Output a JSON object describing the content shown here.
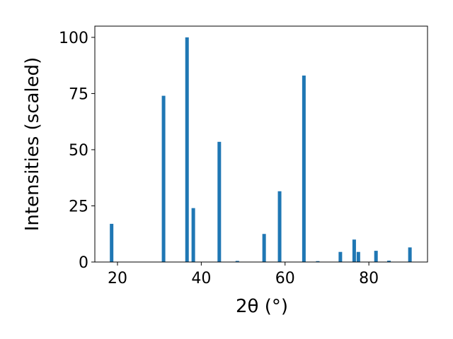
{
  "chart_data": {
    "type": "bar",
    "xlabel": "2θ (°)",
    "ylabel": "Intensities (scaled)",
    "x": [
      18.6,
      31.0,
      36.6,
      38.1,
      44.3,
      48.6,
      55.0,
      58.7,
      64.5,
      67.8,
      73.2,
      76.5,
      77.5,
      81.7,
      84.8,
      89.8
    ],
    "values": [
      17,
      74,
      100,
      24,
      53.5,
      0.5,
      12.5,
      31.5,
      83,
      0.4,
      4.5,
      10,
      4.5,
      5,
      0.6,
      6.5
    ],
    "color": "#1f77b4",
    "xlim": [
      14.6,
      94.0
    ],
    "xticks": [
      20,
      40,
      60,
      80
    ],
    "ylim": [
      0,
      105
    ],
    "yticks": [
      0,
      25,
      50,
      75,
      100
    ],
    "grid": false
  }
}
